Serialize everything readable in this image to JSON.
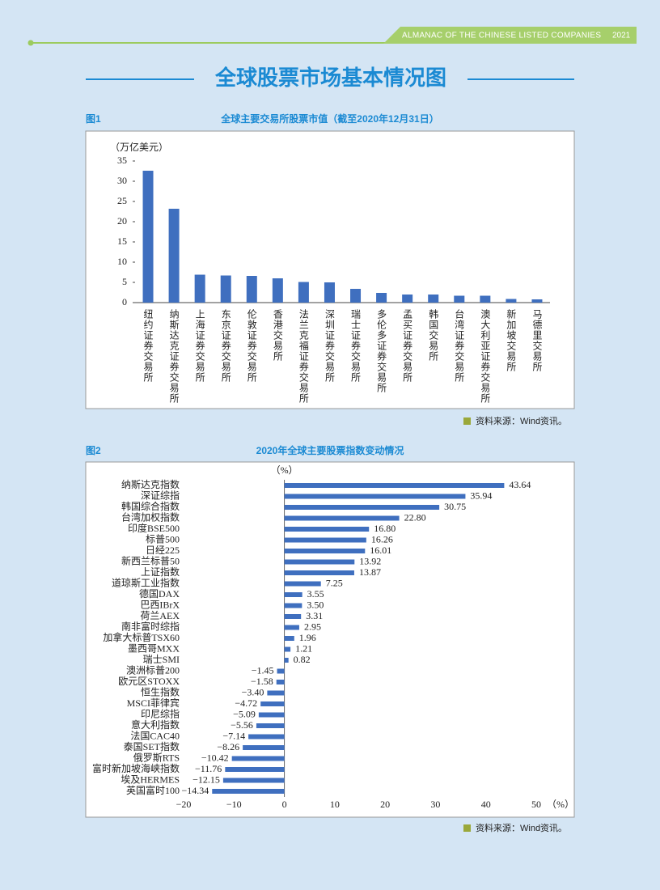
{
  "header": {
    "publication": "ALMANAC OF THE CHINESE LISTED COMPANIES",
    "year": "2021"
  },
  "title": "全球股票市场基本情况图",
  "chart_data": [
    {
      "type": "bar",
      "figure_label": "图1",
      "title": "全球主要交易所股票市值（截至2020年12月31日）",
      "y_unit_label": "（万亿美元）",
      "categories": [
        "纽约证券交易所",
        "纳斯达克证券交易所",
        "上海证券交易所",
        "东京证券交易所",
        "伦敦证券交易所",
        "香港交易所",
        "法兰克福证券交易所",
        "深圳证券交易所",
        "瑞士证券交易所",
        "多伦多证券交易所",
        "孟买证券交易所",
        "韩国交易所",
        "台湾证券交易所",
        "澳大利亚证券交易所",
        "新加坡交易所",
        "马德里交易所"
      ],
      "values": [
        32.6,
        23.2,
        6.9,
        6.7,
        6.6,
        6.0,
        5.1,
        5.0,
        3.4,
        2.4,
        2.0,
        2.0,
        1.7,
        1.7,
        0.9,
        0.8
      ],
      "color": "#3f6fbf",
      "ylim": [
        0,
        35
      ],
      "yticks": [
        0,
        5,
        10,
        15,
        20,
        25,
        30,
        35
      ],
      "source": "资料来源：Wind资讯。"
    },
    {
      "type": "hbar",
      "figure_label": "图2",
      "title": "2020年全球主要股票指数变动情况",
      "unit_label": "（%）",
      "x_unit_label": "（%）",
      "categories": [
        "纳斯达克指数",
        "深证综指",
        "韩国综合指数",
        "台湾加权指数",
        "印度BSE500",
        "标普500",
        "日经225",
        "新西兰标普50",
        "上证指数",
        "道琼斯工业指数",
        "德国DAX",
        "巴西IBrX",
        "荷兰AEX",
        "南非富时综指",
        "加拿大标普TSX60",
        "墨西哥MXX",
        "瑞士SMI",
        "澳洲标普200",
        "欧元区STOXX",
        "恒生指数",
        "MSCI菲律宾",
        "印尼综指",
        "意大利指数",
        "法国CAC40",
        "泰国SET指数",
        "俄罗斯RTS",
        "富时新加坡海峡指数",
        "埃及HERMES",
        "英国富时100"
      ],
      "values": [
        43.64,
        35.94,
        30.75,
        22.8,
        16.8,
        16.26,
        16.01,
        13.92,
        13.87,
        7.25,
        3.55,
        3.5,
        3.31,
        2.95,
        1.96,
        1.21,
        0.82,
        -1.45,
        -1.58,
        -3.4,
        -4.72,
        -5.09,
        -5.56,
        -7.14,
        -8.26,
        -10.42,
        -11.76,
        -12.15,
        -14.34
      ],
      "value_labels": [
        "43.64",
        "35.94",
        "30.75",
        "22.80",
        "16.80",
        "16.26",
        "16.01",
        "13.92",
        "13.87",
        "7.25",
        "3.55",
        "3.50",
        "3.31",
        "2.95",
        "1.96",
        "1.21",
        "0.82",
        "−1.45",
        "−1.58",
        "−3.40",
        "−4.72",
        "−5.09",
        "−5.56",
        "−7.14",
        "−8.26",
        "−10.42",
        "−11.76",
        "−12.15",
        "−14.34"
      ],
      "color": "#3f6fbf",
      "xlim": [
        -20,
        50
      ],
      "xticks": [
        {
          "value": -20,
          "label": "−20"
        },
        {
          "value": -10,
          "label": "−10"
        },
        0,
        10,
        20,
        30,
        40,
        50
      ],
      "source": "资料来源：Wind资讯。"
    }
  ]
}
